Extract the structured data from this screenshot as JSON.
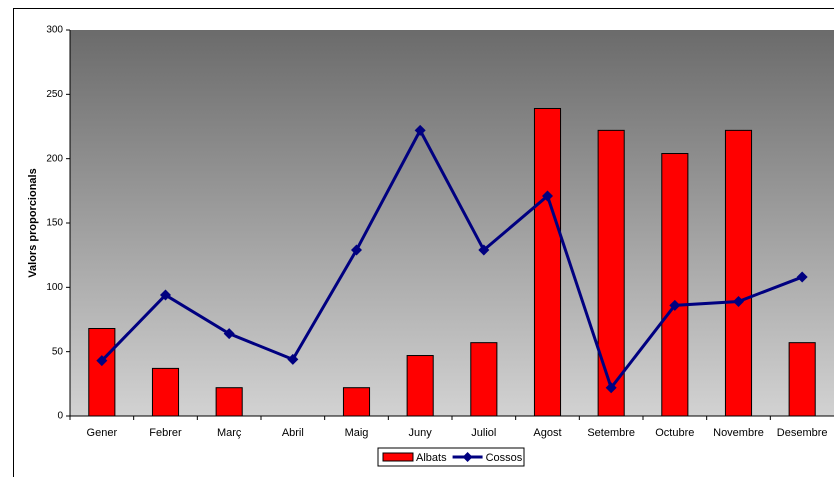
{
  "chart_data": {
    "type": "bar",
    "y_label": "Valors proporcionals",
    "categories": [
      "Gener",
      "Febrer",
      "Març",
      "Abril",
      "Maig",
      "Juny",
      "Juliol",
      "Agost",
      "Setembre",
      "Octubre",
      "Novembre",
      "Desembre"
    ],
    "series": [
      {
        "name": "Albats",
        "type": "bar",
        "color": "#ff0000",
        "values": [
          68,
          37,
          22,
          0,
          22,
          47,
          57,
          239,
          222,
          204,
          222,
          57
        ]
      },
      {
        "name": "Cossos",
        "type": "line",
        "color": "#000080",
        "marker": "diamond",
        "values": [
          43,
          94,
          64,
          44,
          129,
          222,
          129,
          171,
          22,
          86,
          89,
          108
        ]
      }
    ],
    "ylim": [
      0,
      300
    ],
    "yticks": [
      0,
      50,
      100,
      150,
      200,
      250,
      300
    ],
    "grid": false,
    "legend": "bottom"
  }
}
